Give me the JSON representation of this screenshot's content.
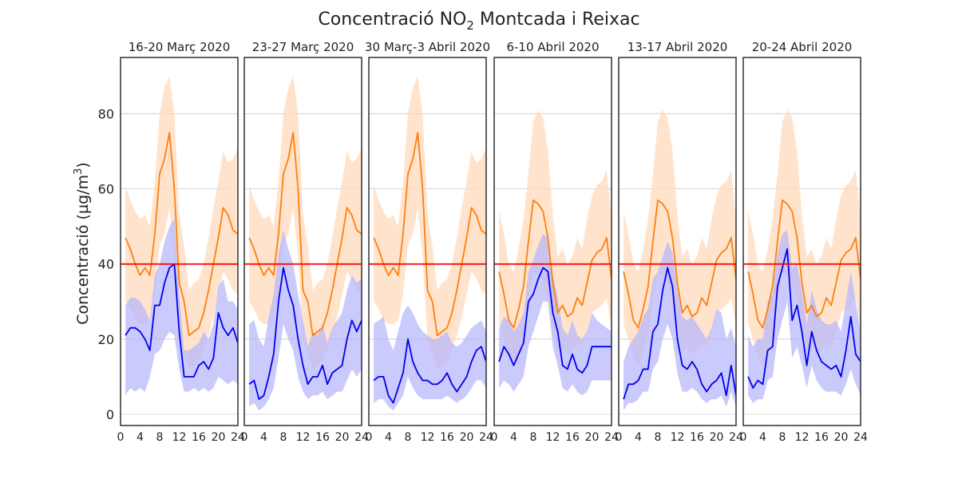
{
  "title": {
    "prefix": "Concentració NO",
    "sub": "2",
    "suffix": " Montcada i Reixac"
  },
  "ylabel": {
    "main": "Concentració (µg/m",
    "sup": "3",
    "end": ")"
  },
  "colors": {
    "current": "#0000ee",
    "current_band": "#b8b8fb",
    "historic": "#ff7f0e",
    "historic_band": "#ffd9bb",
    "limit": "#ff0000",
    "grid": "#cccccc",
    "frame": "#222222"
  },
  "chart_data": {
    "type": "line",
    "xlim": [
      0,
      24
    ],
    "ylim": [
      -3,
      95
    ],
    "xticks": [
      0,
      4,
      8,
      12,
      16,
      20,
      24
    ],
    "yticks": [
      0,
      20,
      40,
      60,
      80
    ],
    "limit_value": 40,
    "hours": [
      1,
      2,
      3,
      4,
      5,
      6,
      7,
      8,
      9,
      10,
      11,
      12,
      13,
      14,
      15,
      16,
      17,
      18,
      19,
      20,
      21,
      22,
      23,
      24
    ],
    "panels": [
      {
        "label": "16-20 Març 2020",
        "current": [
          21,
          23,
          23,
          22,
          20,
          17,
          29,
          29,
          35,
          39,
          40,
          22,
          10,
          10,
          10,
          13,
          14,
          12,
          15,
          27,
          23,
          21,
          23,
          19
        ],
        "current_low": [
          5,
          7,
          6,
          7,
          6,
          10,
          16,
          17,
          20,
          22,
          21,
          12,
          6,
          6,
          7,
          6,
          7,
          6,
          7,
          10,
          9,
          8,
          9,
          8
        ],
        "current_high": [
          29,
          31,
          31,
          30,
          28,
          25,
          37,
          40,
          46,
          50,
          52,
          32,
          17,
          17,
          18,
          19,
          22,
          20,
          24,
          34,
          36,
          30,
          30,
          28
        ],
        "historic": [
          47,
          44,
          40,
          37,
          39,
          37,
          48,
          64,
          68,
          75,
          60,
          35,
          30,
          21,
          22,
          23,
          27,
          33,
          40,
          47,
          55,
          53,
          49,
          48
        ],
        "historic_low": [
          30,
          28,
          25,
          24,
          24,
          25,
          32,
          45,
          48,
          55,
          42,
          20,
          16,
          12,
          13,
          14,
          17,
          21,
          26,
          32,
          38,
          36,
          33,
          32
        ],
        "historic_high": [
          61,
          57,
          54,
          52,
          53,
          50,
          62,
          80,
          87,
          90,
          80,
          53,
          45,
          33,
          35,
          36,
          40,
          47,
          55,
          62,
          70,
          67,
          68,
          71
        ]
      },
      {
        "label": "23-27 Març 2020",
        "current": [
          8,
          9,
          4,
          5,
          10,
          16,
          30,
          39,
          33,
          29,
          20,
          13,
          8,
          10,
          10,
          13,
          8,
          11,
          12,
          13,
          20,
          25,
          22,
          25
        ],
        "current_low": [
          2,
          3,
          1,
          2,
          4,
          7,
          15,
          24,
          20,
          17,
          10,
          6,
          4,
          5,
          5,
          6,
          4,
          5,
          6,
          6,
          9,
          12,
          10,
          12
        ],
        "current_high": [
          24,
          25,
          20,
          18,
          26,
          32,
          43,
          49,
          44,
          40,
          32,
          25,
          18,
          22,
          21,
          24,
          19,
          23,
          25,
          27,
          33,
          37,
          35,
          36
        ],
        "historic": [
          47,
          44,
          40,
          37,
          39,
          37,
          48,
          64,
          68,
          75,
          60,
          33,
          30,
          21,
          22,
          23,
          27,
          33,
          40,
          47,
          55,
          53,
          49,
          48
        ],
        "historic_low": [
          30,
          28,
          25,
          24,
          24,
          25,
          32,
          45,
          48,
          55,
          42,
          20,
          16,
          12,
          13,
          14,
          17,
          21,
          26,
          32,
          38,
          36,
          33,
          32
        ],
        "historic_high": [
          61,
          57,
          54,
          52,
          53,
          50,
          62,
          80,
          87,
          90,
          80,
          53,
          45,
          33,
          35,
          36,
          40,
          47,
          55,
          62,
          70,
          67,
          68,
          71
        ]
      },
      {
        "label": "30 Març-3 Abril 2020",
        "current": [
          9,
          10,
          10,
          5,
          3,
          7,
          11,
          20,
          14,
          11,
          9,
          9,
          8,
          8,
          9,
          11,
          8,
          6,
          8,
          10,
          14,
          17,
          18,
          14
        ],
        "current_low": [
          3,
          4,
          4,
          2,
          1,
          3,
          5,
          10,
          7,
          5,
          4,
          4,
          4,
          4,
          4,
          5,
          4,
          3,
          4,
          5,
          7,
          9,
          9,
          7
        ],
        "current_high": [
          24,
          25,
          26,
          20,
          17,
          22,
          27,
          29,
          27,
          24,
          22,
          21,
          20,
          20,
          21,
          22,
          19,
          18,
          19,
          21,
          23,
          24,
          25,
          22
        ],
        "historic": [
          47,
          44,
          40,
          37,
          39,
          37,
          48,
          64,
          68,
          75,
          60,
          33,
          30,
          21,
          22,
          23,
          27,
          33,
          40,
          47,
          55,
          53,
          49,
          48
        ],
        "historic_low": [
          30,
          28,
          25,
          24,
          24,
          25,
          32,
          45,
          48,
          55,
          42,
          20,
          16,
          12,
          13,
          14,
          17,
          21,
          26,
          32,
          38,
          36,
          33,
          32
        ],
        "historic_high": [
          61,
          57,
          54,
          52,
          53,
          50,
          62,
          80,
          87,
          90,
          80,
          53,
          45,
          33,
          35,
          36,
          40,
          47,
          55,
          62,
          70,
          67,
          68,
          71
        ]
      },
      {
        "label": "6-10 Abril 2020",
        "current": [
          14,
          18,
          16,
          13,
          16,
          19,
          30,
          32,
          36,
          39,
          38,
          27,
          22,
          13,
          12,
          16,
          12,
          11,
          13,
          18,
          18,
          18,
          18,
          18
        ],
        "current_low": [
          7,
          9,
          8,
          6,
          8,
          10,
          18,
          22,
          26,
          30,
          30,
          18,
          13,
          7,
          6,
          8,
          6,
          5,
          6,
          9,
          9,
          9,
          9,
          9
        ],
        "current_high": [
          23,
          26,
          25,
          22,
          24,
          27,
          38,
          41,
          45,
          48,
          47,
          37,
          31,
          23,
          21,
          25,
          21,
          20,
          22,
          27,
          25,
          24,
          23,
          22
        ],
        "historic": [
          38,
          32,
          25,
          23,
          28,
          34,
          46,
          57,
          56,
          54,
          47,
          35,
          27,
          29,
          26,
          27,
          31,
          29,
          35,
          41,
          43,
          44,
          47,
          36
        ],
        "historic_low": [
          24,
          20,
          15,
          13,
          16,
          21,
          30,
          38,
          37,
          35,
          30,
          22,
          17,
          18,
          16,
          17,
          19,
          18,
          22,
          27,
          28,
          29,
          31,
          23
        ],
        "historic_high": [
          54,
          48,
          40,
          38,
          44,
          52,
          64,
          78,
          81,
          79,
          70,
          53,
          42,
          44,
          40,
          42,
          47,
          44,
          52,
          58,
          61,
          62,
          65,
          52
        ]
      },
      {
        "label": "13-17 Abril 2020",
        "current": [
          4,
          8,
          8,
          9,
          12,
          12,
          22,
          24,
          33,
          39,
          34,
          20,
          13,
          12,
          14,
          12,
          8,
          6,
          8,
          9,
          11,
          5,
          13,
          5
        ],
        "current_low": [
          1,
          3,
          3,
          4,
          6,
          6,
          12,
          14,
          20,
          24,
          20,
          11,
          6,
          6,
          7,
          6,
          4,
          3,
          4,
          4,
          5,
          2,
          6,
          2
        ],
        "current_high": [
          14,
          18,
          20,
          22,
          26,
          28,
          36,
          38,
          42,
          46,
          43,
          33,
          26,
          25,
          26,
          24,
          22,
          20,
          23,
          28,
          27,
          20,
          23,
          18
        ],
        "historic": [
          38,
          32,
          25,
          23,
          28,
          34,
          46,
          57,
          56,
          54,
          47,
          35,
          27,
          29,
          26,
          27,
          31,
          29,
          35,
          41,
          43,
          44,
          47,
          36
        ],
        "historic_low": [
          24,
          20,
          15,
          13,
          16,
          21,
          30,
          38,
          37,
          35,
          30,
          22,
          17,
          18,
          16,
          17,
          19,
          18,
          22,
          27,
          28,
          29,
          31,
          23
        ],
        "historic_high": [
          54,
          48,
          40,
          38,
          44,
          52,
          64,
          78,
          81,
          79,
          70,
          53,
          42,
          44,
          40,
          42,
          47,
          44,
          52,
          58,
          61,
          62,
          65,
          52
        ]
      },
      {
        "label": "20-24 Abril 2020",
        "current": [
          10,
          7,
          9,
          8,
          17,
          18,
          34,
          39,
          44,
          25,
          29,
          22,
          13,
          22,
          17,
          14,
          13,
          12,
          13,
          10,
          17,
          26,
          16,
          14
        ],
        "current_low": [
          5,
          3,
          4,
          4,
          9,
          10,
          20,
          25,
          30,
          15,
          18,
          13,
          7,
          13,
          9,
          7,
          6,
          6,
          6,
          5,
          8,
          12,
          8,
          5
        ],
        "current_high": [
          21,
          18,
          20,
          20,
          30,
          32,
          43,
          48,
          49,
          39,
          40,
          33,
          24,
          33,
          28,
          25,
          24,
          24,
          25,
          22,
          30,
          38,
          30,
          22
        ],
        "historic": [
          38,
          32,
          25,
          23,
          28,
          34,
          46,
          57,
          56,
          54,
          47,
          35,
          27,
          29,
          26,
          27,
          31,
          29,
          35,
          41,
          43,
          44,
          47,
          36
        ],
        "historic_low": [
          24,
          20,
          15,
          13,
          16,
          21,
          30,
          38,
          37,
          35,
          30,
          22,
          17,
          18,
          16,
          17,
          19,
          18,
          22,
          27,
          28,
          29,
          31,
          23
        ],
        "historic_high": [
          54,
          48,
          40,
          38,
          44,
          52,
          64,
          78,
          81,
          79,
          70,
          53,
          42,
          44,
          40,
          42,
          47,
          44,
          52,
          58,
          61,
          62,
          65,
          52
        ]
      }
    ]
  }
}
